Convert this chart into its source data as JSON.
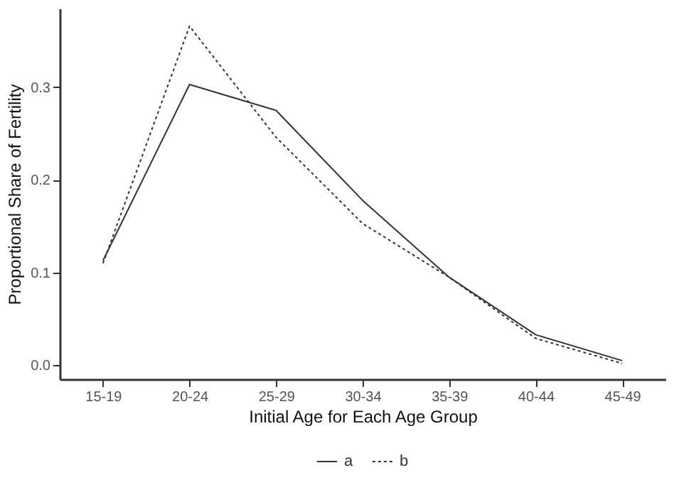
{
  "chart_data": {
    "type": "line",
    "xlabel": "Initial Age for Each Age Group",
    "ylabel": "Proportional Share of Fertility",
    "categories": [
      "15-19",
      "20-24",
      "25-29",
      "30-34",
      "35-39",
      "40-44",
      "45-49"
    ],
    "series": [
      {
        "name": "a",
        "color": "#333333",
        "line_style": "solid",
        "values": [
          0.113,
          0.303,
          0.275,
          0.178,
          0.095,
          0.033,
          0.005
        ]
      },
      {
        "name": "b",
        "color": "#333333",
        "line_style": "dotted",
        "values": [
          0.11,
          0.366,
          0.246,
          0.153,
          0.095,
          0.029,
          0.002
        ]
      }
    ],
    "ylim": [
      -0.015,
      0.385
    ],
    "yticks": [
      {
        "value": 0,
        "label": "0.0"
      },
      0.1,
      0.2,
      0.3
    ],
    "grid": false,
    "legend": "bottom",
    "marker": "none"
  }
}
